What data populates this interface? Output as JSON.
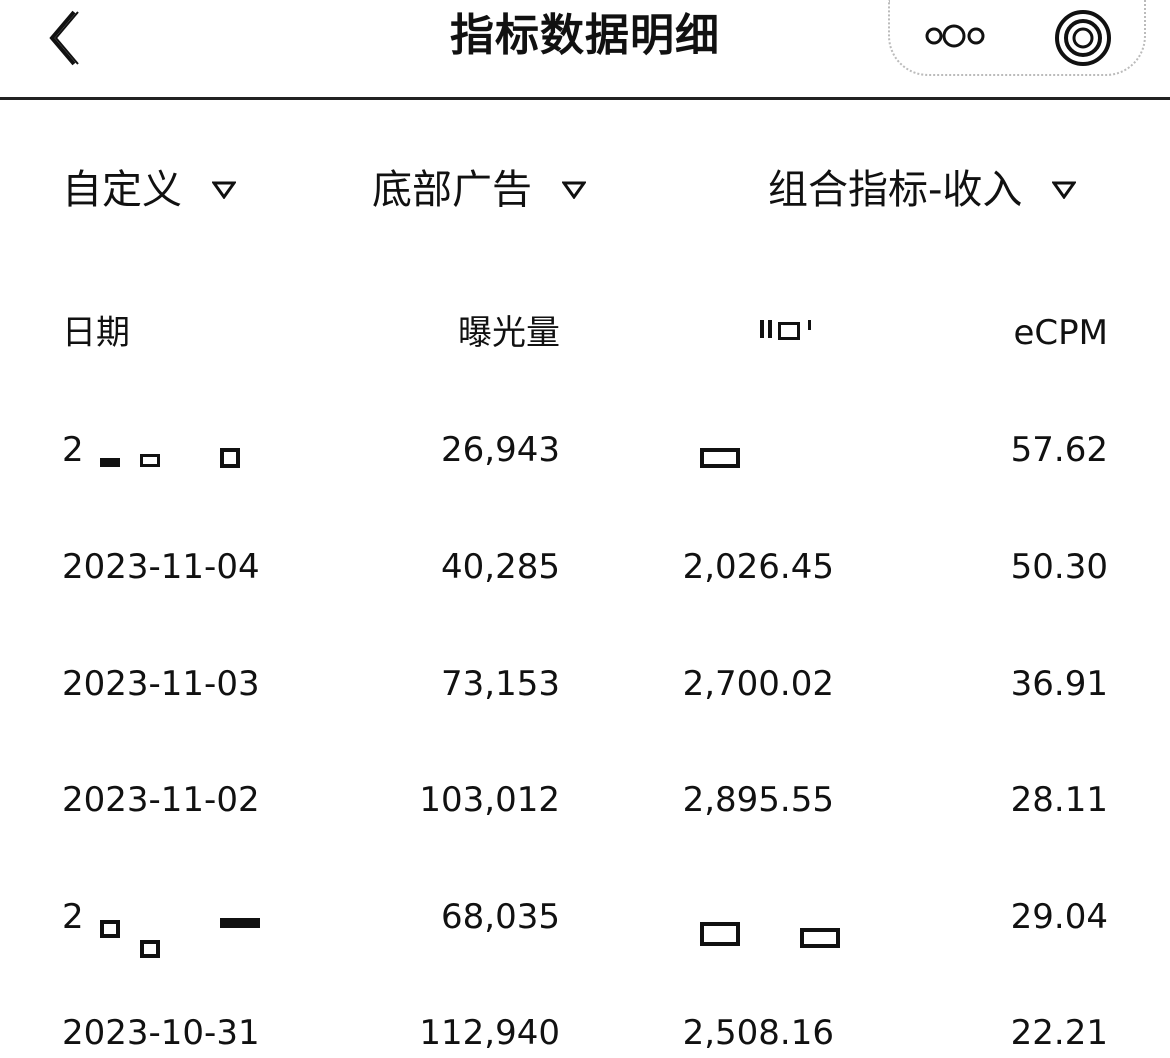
{
  "nav": {
    "title": "指标数据明细",
    "back_icon": "chevron-left-icon",
    "more_icon": "more-dots-icon",
    "close_icon": "target-circle-icon"
  },
  "filters": [
    {
      "label": "自定义"
    },
    {
      "label": "底部广告"
    },
    {
      "label": "组合指标-收入"
    }
  ],
  "table": {
    "headers": [
      "日期",
      "曝光量",
      "",
      "eCPM"
    ],
    "rows": [
      {
        "date": "2",
        "exposure": "26,943",
        "income": "",
        "ecpm": "57.62"
      },
      {
        "date": "2023-11-04",
        "exposure": "40,285",
        "income": "2,026.45",
        "ecpm": "50.30"
      },
      {
        "date": "2023-11-03",
        "exposure": "73,153",
        "income": "2,700.02",
        "ecpm": "36.91"
      },
      {
        "date": "2023-11-02",
        "exposure": "103,012",
        "income": "2,895.55",
        "ecpm": "28.11"
      },
      {
        "date": "2",
        "exposure": "68,035",
        "income": "",
        "ecpm": "29.04"
      },
      {
        "date": "2023-10-31",
        "exposure": "112,940",
        "income": "2,508.16",
        "ecpm": "22.21"
      }
    ]
  }
}
